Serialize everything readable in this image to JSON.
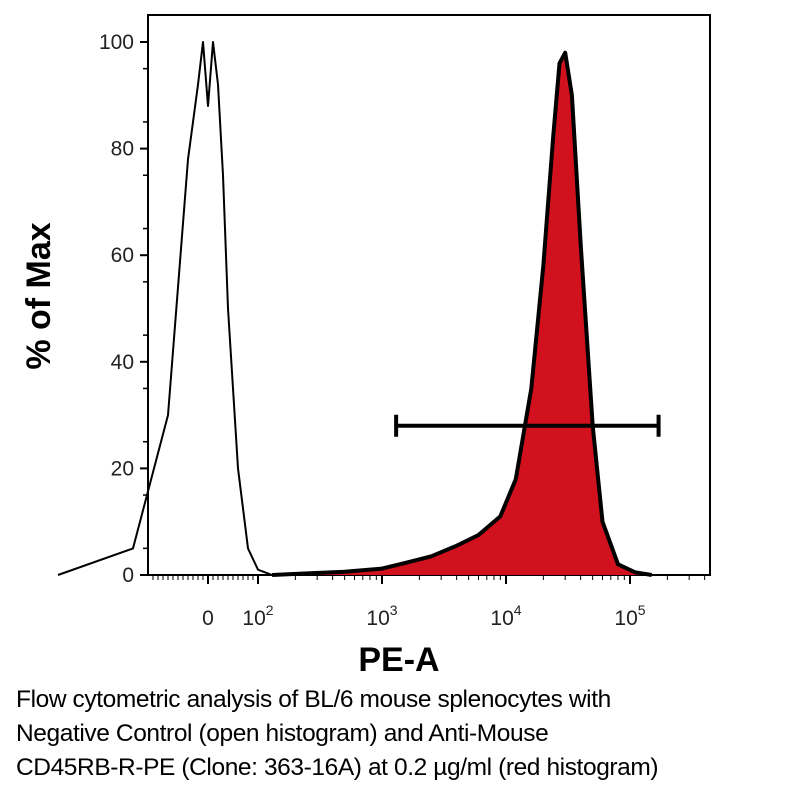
{
  "chart_data": {
    "type": "area",
    "xlabel": "PE-A",
    "ylabel": "% of Max",
    "x_scale": "biexponential",
    "ylim": [
      0,
      100
    ],
    "y_ticks": [
      0,
      20,
      40,
      60,
      80,
      100
    ],
    "x_ticks": [
      {
        "base": "0",
        "exp": ""
      },
      {
        "base": "10",
        "exp": "2"
      },
      {
        "base": "10",
        "exp": "3"
      },
      {
        "base": "10",
        "exp": "4"
      },
      {
        "base": "10",
        "exp": "5"
      }
    ],
    "series": [
      {
        "fill": "none",
        "stroke": "#000000",
        "x": [
          -300,
          -150,
          -80,
          -40,
          -20,
          -10,
          0,
          10,
          20,
          30,
          40,
          60,
          80,
          100,
          130,
          200,
          500,
          1000
        ],
        "values": [
          0,
          5,
          30,
          78,
          92,
          100,
          88,
          100,
          92,
          75,
          50,
          20,
          5,
          1,
          0,
          0,
          0,
          0
        ]
      },
      {
        "fill": "#d2111e",
        "stroke": "#000000",
        "x": [
          130,
          250,
          500,
          1000,
          1500,
          2500,
          4000,
          6000,
          9000,
          12000,
          16000,
          20000,
          24000,
          27000,
          30000,
          34000,
          40000,
          50000,
          60000,
          80000,
          110000,
          150000
        ],
        "values": [
          0,
          0.3,
          0.6,
          1.2,
          2.2,
          3.5,
          5.5,
          7.5,
          11,
          18,
          35,
          58,
          82,
          96,
          98,
          90,
          62,
          28,
          10,
          2,
          0.5,
          0
        ]
      }
    ],
    "gate": {
      "x_start": 1300,
      "x_end": 170000,
      "y": 28
    }
  },
  "caption": {
    "lines": [
      "Flow cytometric analysis of BL/6 mouse splenocytes with",
      "Negative Control (open histogram) and Anti-Mouse",
      "CD45RB-R-PE (Clone: 363-16A) at 0.2 µg/ml (red histogram)"
    ]
  }
}
